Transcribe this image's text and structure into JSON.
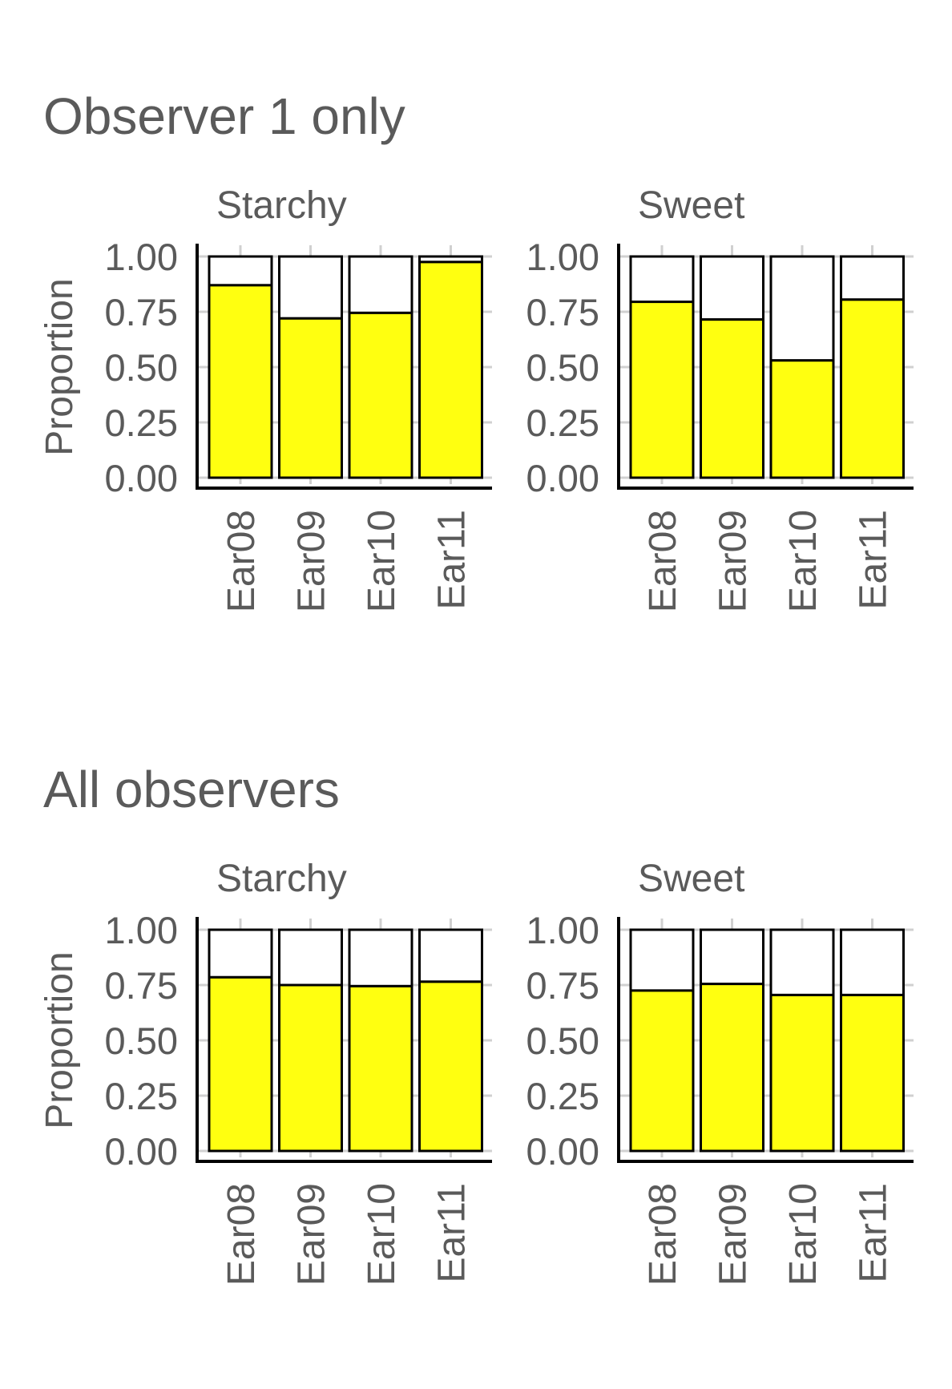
{
  "chart_data": [
    {
      "type": "bar",
      "stacked": true,
      "title": "Observer 1 only",
      "ylabel": "Proportion",
      "ylim": [
        0,
        1
      ],
      "yticks": [
        "0.00",
        "0.25",
        "0.50",
        "0.75",
        "1.00"
      ],
      "colors": {
        "fill": "#ffff10",
        "remainder": "#ffffff",
        "outline": "#000000"
      },
      "grid": true,
      "panels": [
        {
          "label": "Starchy",
          "categories": [
            "Ear08",
            "Ear09",
            "Ear10",
            "Ear11"
          ],
          "values": [
            0.87,
            0.72,
            0.745,
            0.975
          ]
        },
        {
          "label": "Sweet",
          "categories": [
            "Ear08",
            "Ear09",
            "Ear10",
            "Ear11"
          ],
          "values": [
            0.795,
            0.715,
            0.53,
            0.805
          ]
        }
      ]
    },
    {
      "type": "bar",
      "stacked": true,
      "title": "All observers",
      "ylabel": "Proportion",
      "ylim": [
        0,
        1
      ],
      "yticks": [
        "0.00",
        "0.25",
        "0.50",
        "0.75",
        "1.00"
      ],
      "colors": {
        "fill": "#ffff10",
        "remainder": "#ffffff",
        "outline": "#000000"
      },
      "grid": true,
      "panels": [
        {
          "label": "Starchy",
          "categories": [
            "Ear08",
            "Ear09",
            "Ear10",
            "Ear11"
          ],
          "values": [
            0.785,
            0.75,
            0.745,
            0.765
          ]
        },
        {
          "label": "Sweet",
          "categories": [
            "Ear08",
            "Ear09",
            "Ear10",
            "Ear11"
          ],
          "values": [
            0.725,
            0.755,
            0.705,
            0.705
          ]
        }
      ]
    }
  ]
}
